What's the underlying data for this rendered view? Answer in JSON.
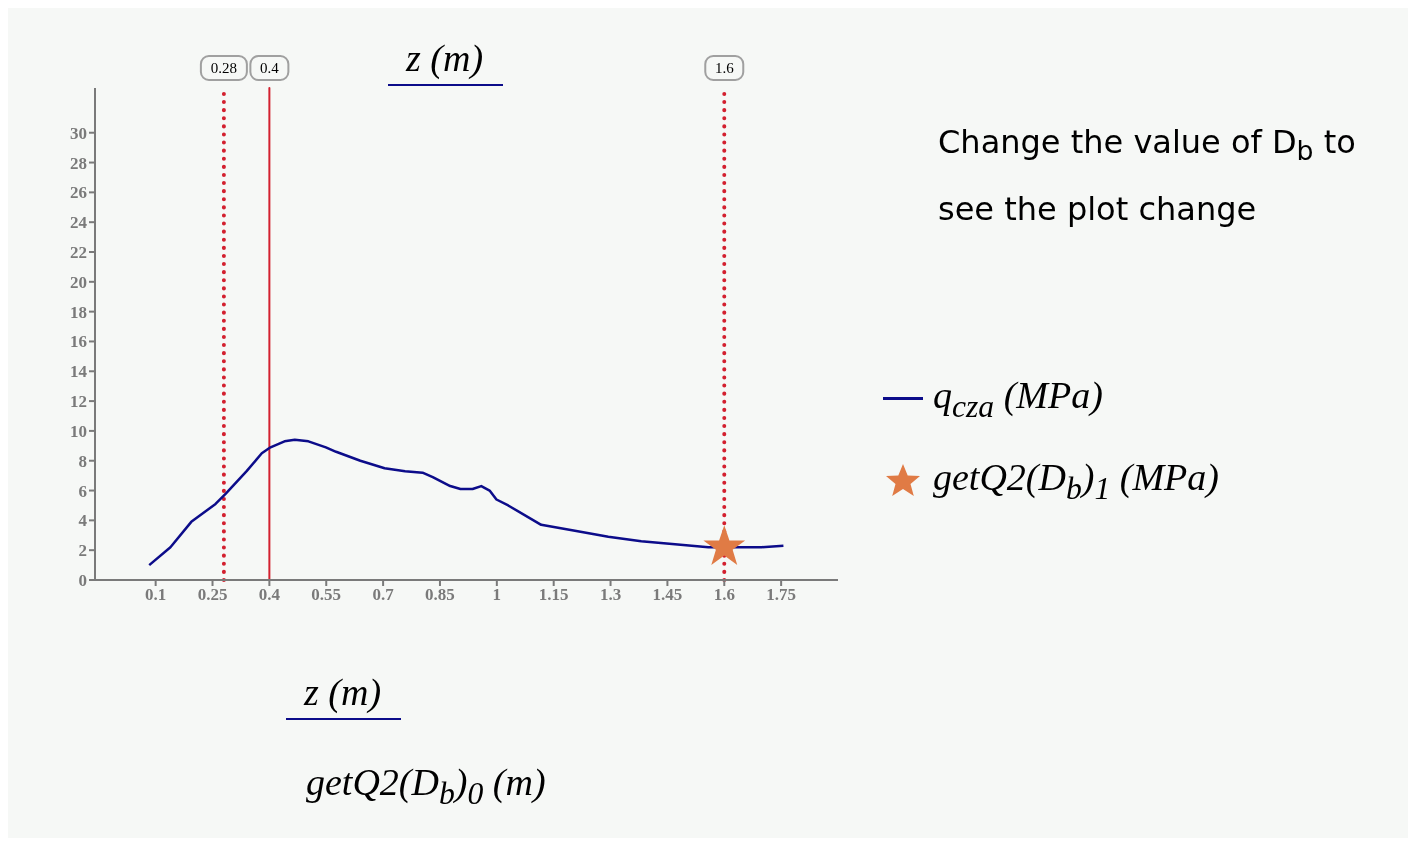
{
  "chart_data": {
    "type": "line",
    "xlabel": "z (m)",
    "xlim": [
      -0.06,
      1.9
    ],
    "xticks": [
      0.1,
      0.25,
      0.4,
      0.55,
      0.7,
      0.85,
      1,
      1.15,
      1.3,
      1.45,
      1.6,
      1.75
    ],
    "ylim": [
      0,
      33
    ],
    "yticks": [
      0,
      2,
      4,
      6,
      8,
      10,
      12,
      14,
      16,
      18,
      20,
      22,
      24,
      26,
      28,
      30
    ],
    "legend": "right",
    "marker": "none",
    "line_style": "solid",
    "series": [
      {
        "name": "q$_{cza}$ (MPa)",
        "color": "#0c0c8a",
        "x": [
          0.083,
          0.139,
          0.194,
          0.258,
          0.285,
          0.34,
          0.38,
          0.403,
          0.44,
          0.467,
          0.503,
          0.549,
          0.576,
          0.64,
          0.704,
          0.758,
          0.804,
          0.831,
          0.877,
          0.904,
          0.936,
          0.959,
          0.981,
          0.999,
          1.03,
          1.117,
          1.206,
          1.294,
          1.381,
          1.47,
          1.558,
          1.645,
          1.698,
          1.756
        ],
        "values": [
          1.0,
          2.2,
          3.9,
          5.1,
          5.8,
          7.3,
          8.5,
          8.9,
          9.3,
          9.4,
          9.3,
          8.9,
          8.6,
          8.0,
          7.5,
          7.3,
          7.2,
          6.9,
          6.3,
          6.1,
          6.1,
          6.3,
          6.0,
          5.4,
          5.0,
          3.7,
          3.3,
          2.9,
          2.6,
          2.4,
          2.2,
          2.2,
          2.2,
          2.3
        ]
      },
      {
        "name": "getQ2(D$_{b}$)$_{1}$ (MPa)",
        "type": "scatter",
        "marker": "star",
        "color": "#e07b45",
        "x": [
          1.6
        ],
        "values": [
          2.2
        ]
      }
    ],
    "ref_lines": [
      {
        "axis": "x",
        "value": 0.28,
        "label": "0.28",
        "color": "#d3202f",
        "line_style": "dotted"
      },
      {
        "axis": "x",
        "value": 0.4,
        "label": "0.4",
        "color": "#d3202f",
        "line_style": "solid"
      },
      {
        "axis": "x",
        "value": 1.6,
        "label": "1.6",
        "color": "#d3202f",
        "line_style": "dotted"
      }
    ],
    "annotations": [
      "getQ2(D$_{b}$)$_{0}$ (m)",
      "z (m)",
      "Change the value of D$_{b}$ to see the plot change"
    ]
  }
}
